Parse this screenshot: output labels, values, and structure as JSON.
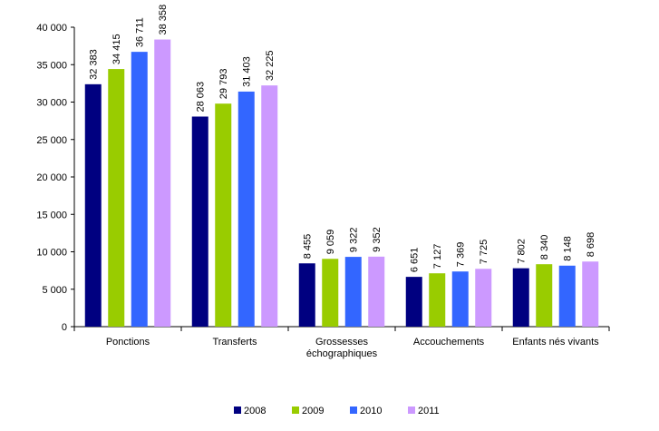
{
  "chart_data": {
    "type": "bar",
    "title": "",
    "xlabel": "",
    "ylabel": "",
    "ylim": [
      0,
      40000
    ],
    "yticks": [
      "0",
      "5 000",
      "10 000",
      "15 000",
      "20 000",
      "25 000",
      "30 000",
      "35 000",
      "40 000"
    ],
    "grid": false,
    "legend_position": "bottom",
    "categories": [
      [
        "Ponctions"
      ],
      [
        "Transferts"
      ],
      [
        "Grossesses",
        "échographiques"
      ],
      [
        "Accouchements"
      ],
      [
        "Enfants nés vivants"
      ]
    ],
    "series": [
      {
        "name": "2008",
        "color": "#000080",
        "values": [
          32383,
          28063,
          8455,
          6651,
          7802
        ],
        "labels": [
          "32 383",
          "28 063",
          "8 455",
          "6 651",
          "7 802"
        ]
      },
      {
        "name": "2009",
        "color": "#99cc00",
        "values": [
          34415,
          29793,
          9059,
          7127,
          8340
        ],
        "labels": [
          "34 415",
          "29 793",
          "9 059",
          "7 127",
          "8 340"
        ]
      },
      {
        "name": "2010",
        "color": "#3366ff",
        "values": [
          36711,
          31403,
          9322,
          7369,
          8148
        ],
        "labels": [
          "36 711",
          "31 403",
          "9 322",
          "7 369",
          "8 148"
        ]
      },
      {
        "name": "2011",
        "color": "#cc99ff",
        "values": [
          38358,
          32225,
          9352,
          7725,
          8698
        ],
        "labels": [
          "38 358",
          "32 225",
          "9 352",
          "7 725",
          "8 698"
        ]
      }
    ]
  }
}
